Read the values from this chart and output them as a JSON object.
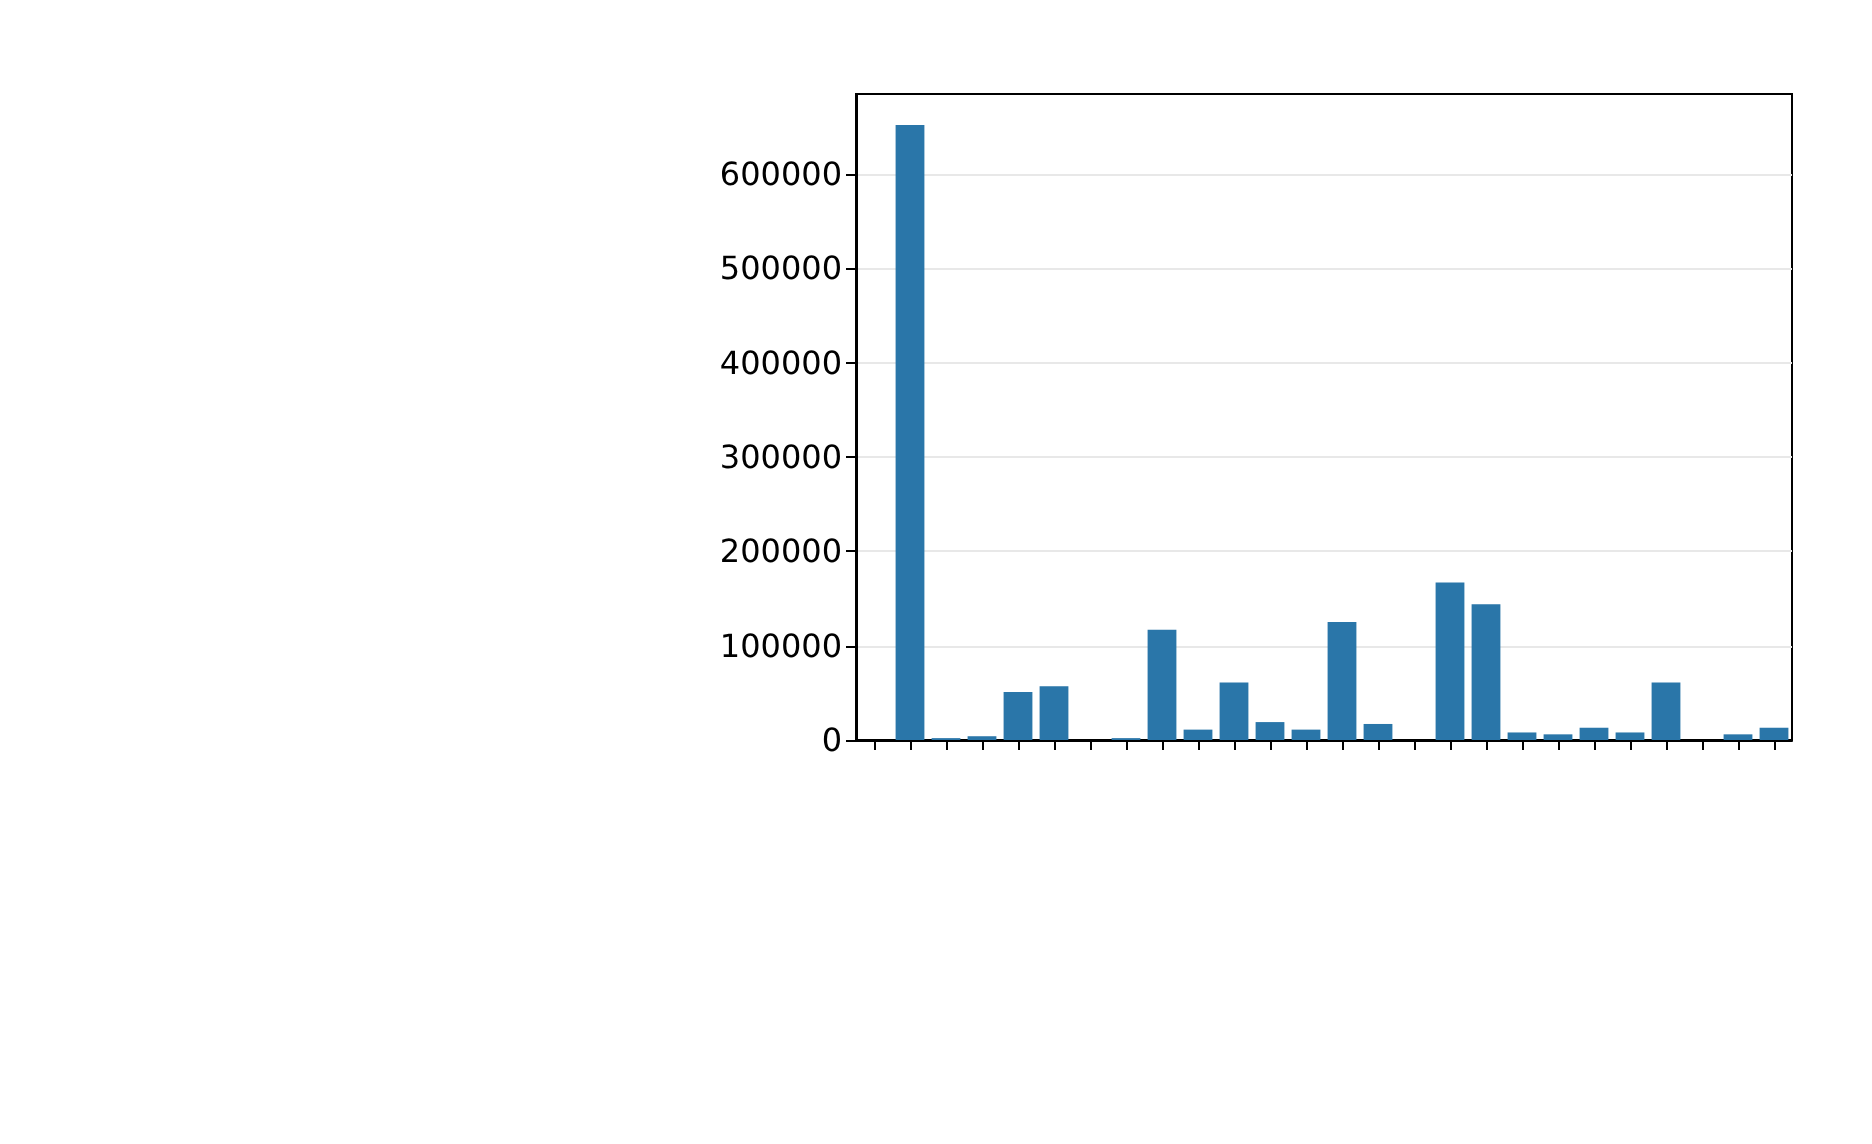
{
  "chart_data": {
    "type": "bar",
    "categories": [
      null,
      null,
      null,
      null,
      null,
      null,
      null,
      null,
      null,
      null,
      null,
      null,
      null,
      null,
      null,
      null,
      null,
      null,
      null,
      null,
      null,
      null,
      null,
      null,
      null,
      null
    ],
    "values": [
      0,
      652000,
      2000,
      4000,
      51000,
      57000,
      0,
      2000,
      117000,
      11000,
      61000,
      19000,
      11000,
      125000,
      17000,
      0,
      167000,
      144000,
      8000,
      6000,
      13000,
      8000,
      61000,
      0,
      6000,
      13000
    ],
    "color": "#2a76a9",
    "ylim": [
      0,
      685000
    ],
    "yticks": [
      0,
      100000,
      200000,
      300000,
      400000,
      500000,
      600000
    ],
    "grid": "y"
  }
}
